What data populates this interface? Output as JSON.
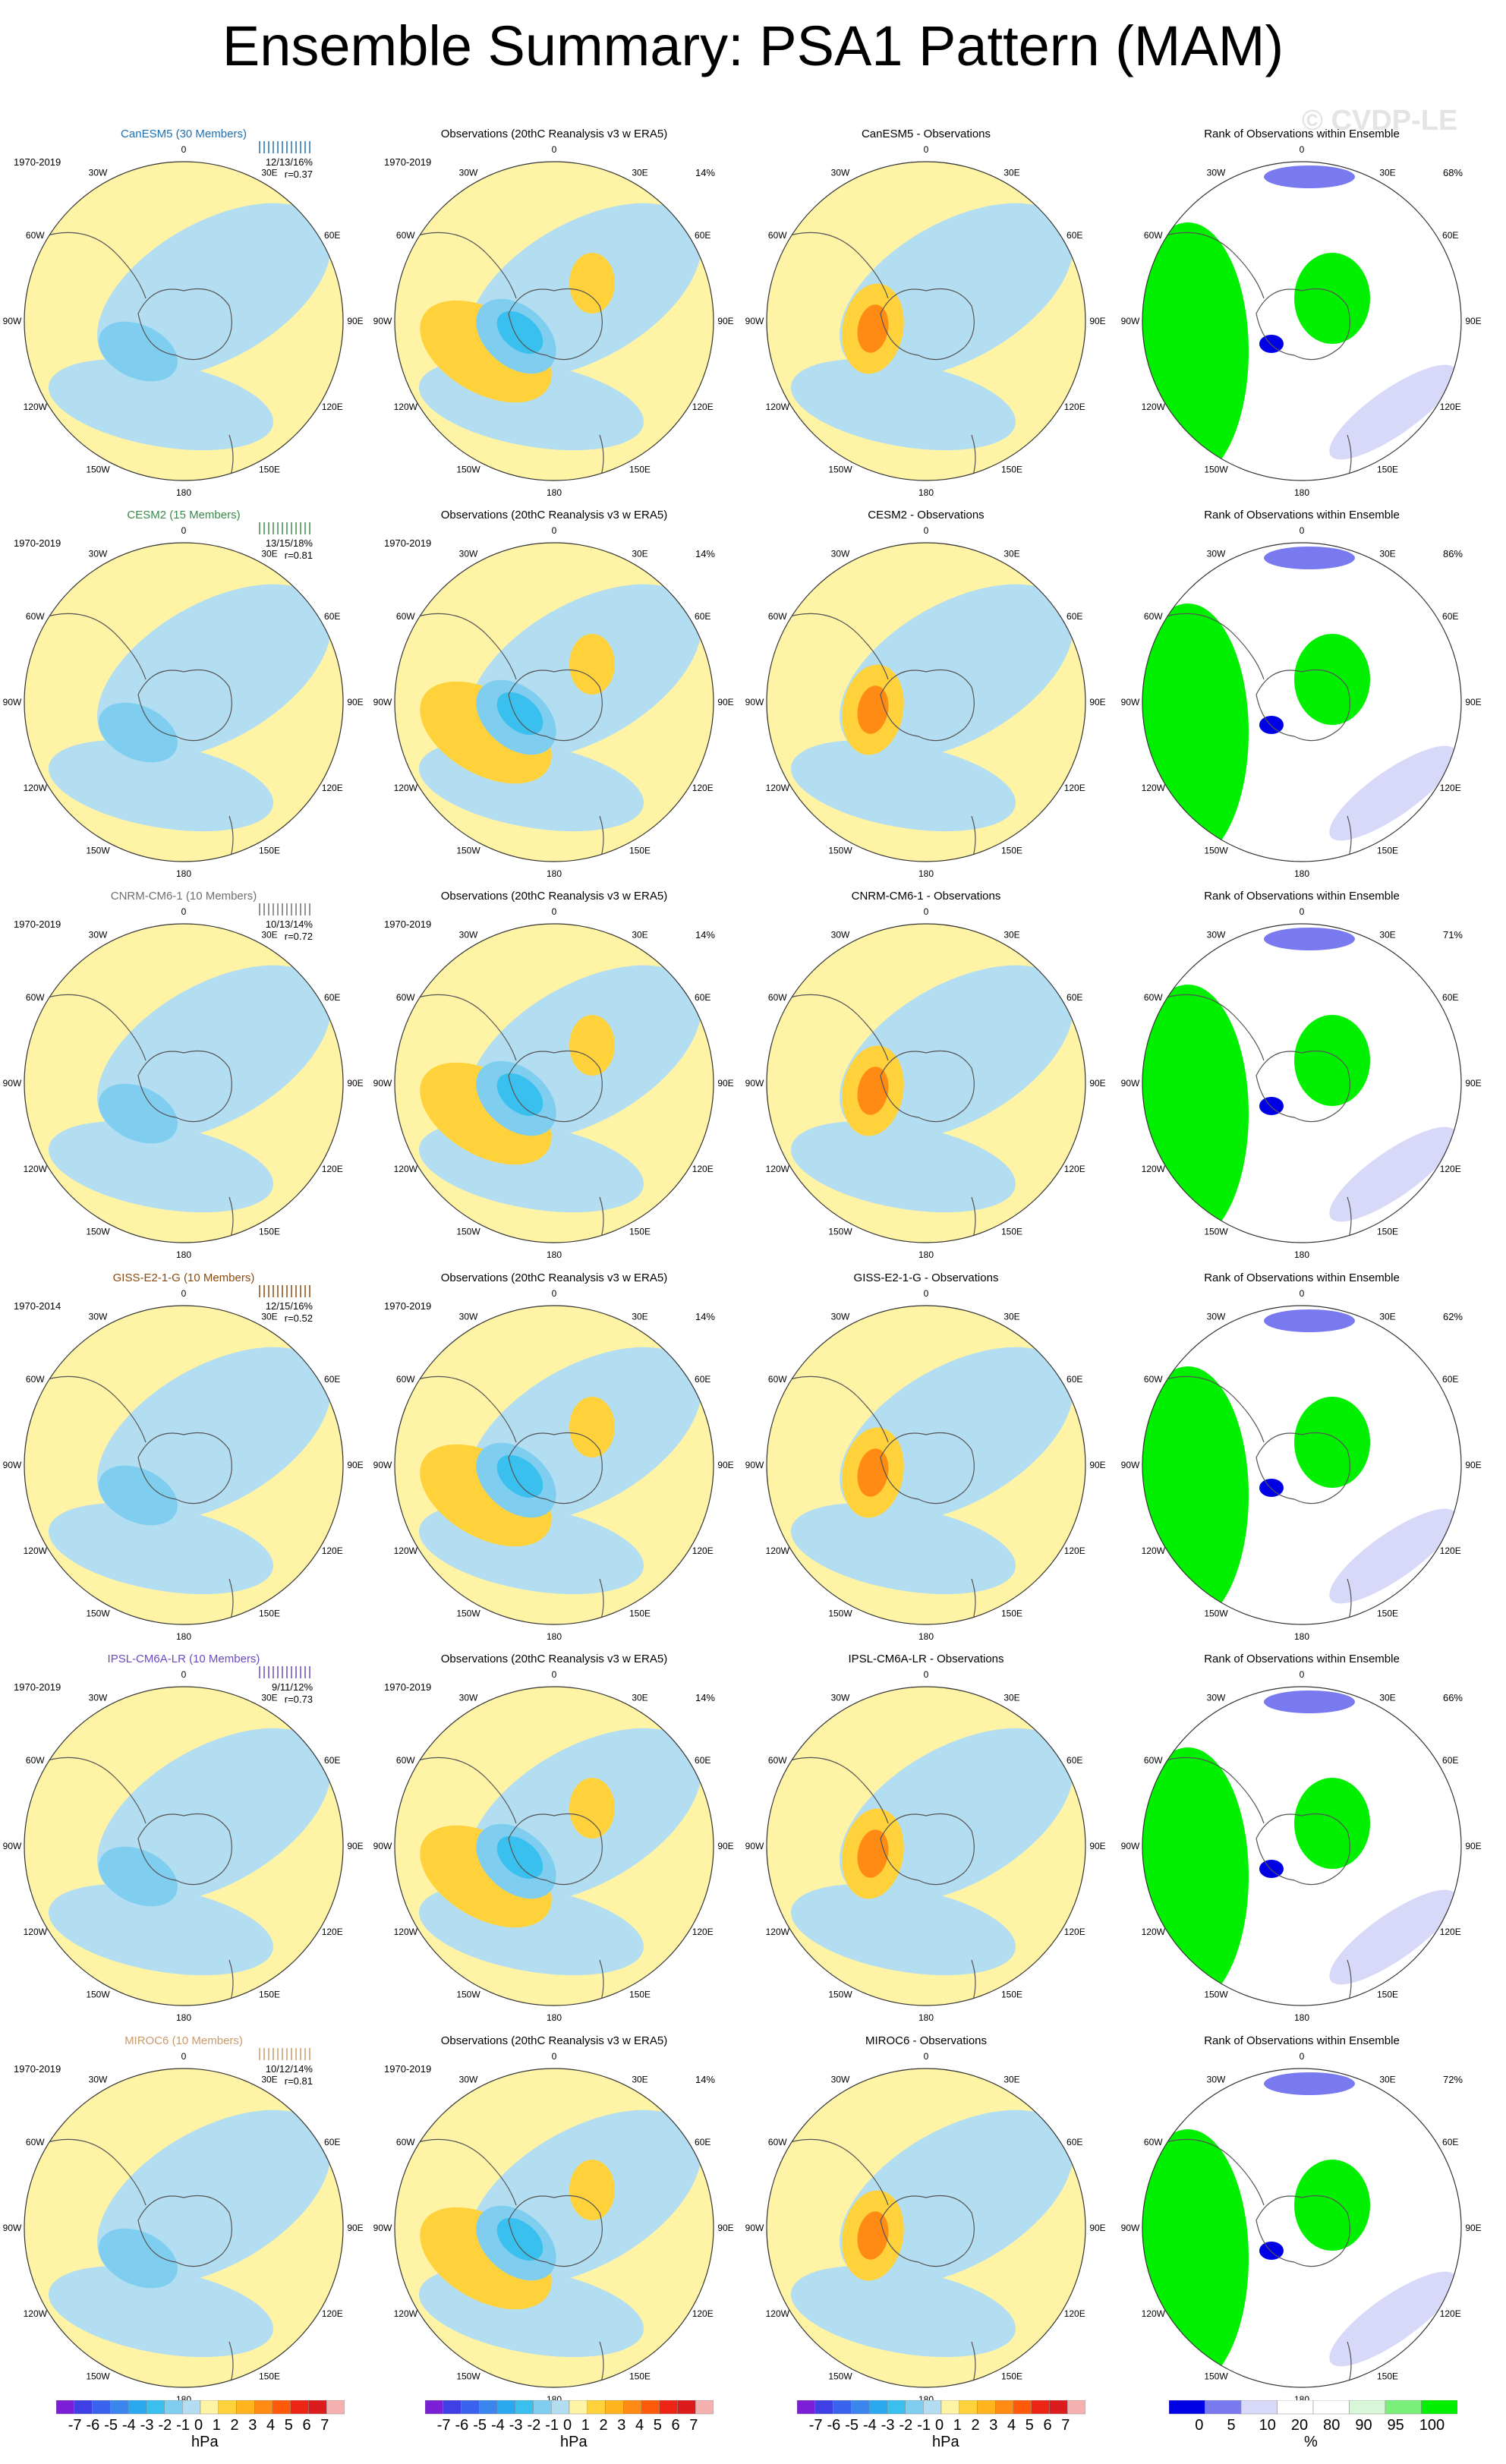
{
  "title": "Ensemble Summary: PSA1 Pattern (MAM)",
  "watermark": "© CVDP-LE",
  "longitude_labels": [
    "0",
    "30E",
    "60E",
    "90E",
    "120E",
    "150E",
    "180",
    "150W",
    "120W",
    "90W",
    "60W",
    "30W"
  ],
  "rows": [
    {
      "model": "CanESM5 (30 Members)",
      "model_color": "#1f6fb0",
      "period": "1970-2019",
      "stats": "12/13/16%",
      "corr": "r=0.37",
      "obs_period": "1970-2019",
      "obs_pct": "14%",
      "obs_title": "Observations (20thC Reanalysis v3 w ERA5)",
      "diff_title": "CanESM5 - Observations",
      "rank_title": "Rank of Observations within Ensemble",
      "rank_pct": "68%"
    },
    {
      "model": "CESM2 (15 Members)",
      "model_color": "#3a8a4a",
      "period": "1970-2019",
      "stats": "13/15/18%",
      "corr": "r=0.81",
      "obs_period": "1970-2019",
      "obs_pct": "14%",
      "obs_title": "Observations (20thC Reanalysis v3 w ERA5)",
      "diff_title": "CESM2 - Observations",
      "rank_title": "Rank of Observations within Ensemble",
      "rank_pct": "86%"
    },
    {
      "model": "CNRM-CM6-1 (10 Members)",
      "model_color": "#6f6f6f",
      "period": "1970-2019",
      "stats": "10/13/14%",
      "corr": "r=0.72",
      "obs_period": "1970-2019",
      "obs_pct": "14%",
      "obs_title": "Observations (20thC Reanalysis v3 w ERA5)",
      "diff_title": "CNRM-CM6-1 - Observations",
      "rank_title": "Rank of Observations within Ensemble",
      "rank_pct": "71%"
    },
    {
      "model": "GISS-E2-1-G (10 Members)",
      "model_color": "#8a4a10",
      "period": "1970-2014",
      "stats": "12/15/16%",
      "corr": "r=0.52",
      "obs_period": "1970-2019",
      "obs_pct": "14%",
      "obs_title": "Observations (20thC Reanalysis v3 w ERA5)",
      "diff_title": "GISS-E2-1-G - Observations",
      "rank_title": "Rank of Observations within Ensemble",
      "rank_pct": "62%"
    },
    {
      "model": "IPSL-CM6A-LR (10 Members)",
      "model_color": "#6a4ac0",
      "period": "1970-2019",
      "stats": "9/11/12%",
      "corr": "r=0.73",
      "obs_period": "1970-2019",
      "obs_pct": "14%",
      "obs_title": "Observations (20thC Reanalysis v3 w ERA5)",
      "diff_title": "IPSL-CM6A-LR - Observations",
      "rank_title": "Rank of Observations within Ensemble",
      "rank_pct": "66%"
    },
    {
      "model": "MIROC6 (10 Members)",
      "model_color": "#c99a6a",
      "period": "1970-2019",
      "stats": "10/12/14%",
      "corr": "r=0.81",
      "obs_period": "1970-2019",
      "obs_pct": "14%",
      "obs_title": "Observations (20thC Reanalysis v3 w ERA5)",
      "diff_title": "MIROC6 - Observations",
      "rank_title": "Rank of Observations within Ensemble",
      "rank_pct": "72%"
    }
  ],
  "colorbar_hpa": {
    "labels": [
      "-7",
      "-6",
      "-5",
      "-4",
      "-3",
      "-2",
      "-1",
      "0",
      "1",
      "2",
      "3",
      "4",
      "5",
      "6",
      "7"
    ],
    "unit": "hPa",
    "colors": [
      "#7b1fd6",
      "#3f3fe6",
      "#3a62ee",
      "#3a86ee",
      "#2aa9f0",
      "#39c0ef",
      "#7fcef0",
      "#b3def2",
      "#fff3a6",
      "#ffd23c",
      "#ffb41e",
      "#ff8a14",
      "#ff5a0a",
      "#ee2414",
      "#dc1c1c",
      "#f5b0b0"
    ]
  },
  "colorbar_rank": {
    "labels": [
      "0",
      "5",
      "10",
      "20",
      "80",
      "90",
      "95",
      "100"
    ],
    "unit": "%",
    "colors": [
      "#0000e6",
      "#7a7af0",
      "#d8d8f8",
      "#ffffff",
      "#ffffff",
      "#d8f7d8",
      "#7af07a",
      "#00f000"
    ]
  },
  "colors": {
    "positive_weak": "#fff3a6",
    "negative_weak": "#b3def2",
    "rank_high": "#00f000",
    "rank_low": "#0000e6"
  }
}
